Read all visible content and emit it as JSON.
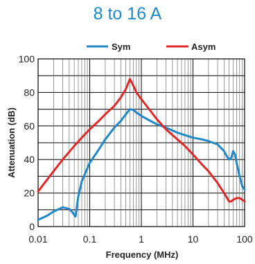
{
  "chart_data": {
    "type": "line",
    "title": "8 to 16 A",
    "xlabel": "Frequency (MHz)",
    "ylabel": "Attenuation (dB)",
    "x_scale": "log",
    "xlim": [
      0.01,
      100
    ],
    "ylim": [
      0,
      100
    ],
    "x_ticks": [
      0.01,
      0.1,
      1,
      10,
      100
    ],
    "x_tick_labels": [
      "0.01",
      "0.1",
      "1",
      "10",
      "100"
    ],
    "y_ticks": [
      0,
      20,
      40,
      60,
      80,
      100
    ],
    "y_tick_labels": [
      "0",
      "20",
      "40",
      "60",
      "80",
      "100"
    ],
    "grid": true,
    "legend_position": "top",
    "series": [
      {
        "name": "Sym",
        "color": "#1f88c8",
        "x": [
          0.01,
          0.015,
          0.02,
          0.03,
          0.04,
          0.045,
          0.05,
          0.053,
          0.06,
          0.07,
          0.1,
          0.15,
          0.2,
          0.3,
          0.4,
          0.5,
          0.6,
          0.7,
          0.8,
          1,
          1.5,
          2,
          3,
          5,
          7,
          10,
          15,
          20,
          30,
          40,
          45,
          50,
          55,
          60,
          65,
          70,
          80,
          90,
          100
        ],
        "y": [
          4,
          6.5,
          9,
          11.5,
          10.5,
          9,
          7,
          6,
          18,
          27,
          38,
          46,
          52,
          59,
          63,
          67,
          70,
          69.5,
          68,
          66,
          63,
          61,
          59,
          56,
          54.5,
          53,
          52,
          51,
          49,
          45,
          42,
          40,
          41,
          45,
          43,
          38,
          30,
          24,
          22
        ]
      },
      {
        "name": "Asym",
        "color": "#e02828",
        "x": [
          0.01,
          0.015,
          0.02,
          0.03,
          0.05,
          0.07,
          0.1,
          0.15,
          0.2,
          0.3,
          0.4,
          0.5,
          0.6,
          0.7,
          0.8,
          1,
          1.5,
          2,
          3,
          5,
          7,
          10,
          15,
          20,
          30,
          40,
          50,
          55,
          60,
          70,
          80,
          90,
          100
        ],
        "y": [
          21,
          28,
          33,
          40,
          48,
          53,
          58,
          63,
          67,
          72,
          77,
          82,
          88,
          84,
          80,
          76,
          69,
          64,
          58,
          52,
          48,
          43,
          37,
          33,
          26,
          20,
          15,
          15,
          16,
          17,
          17,
          16,
          15
        ]
      }
    ]
  }
}
